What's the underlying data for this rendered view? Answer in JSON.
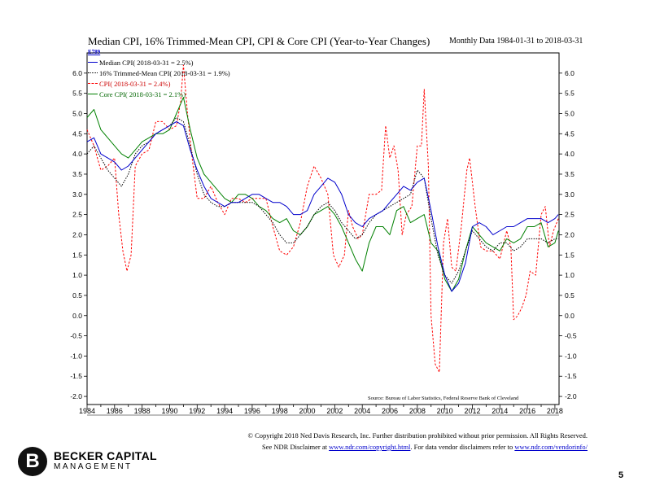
{
  "header": {
    "title": "Median CPI, 16% Trimmed-Mean CPI, CPI & Core CPI (Year-to-Year Changes)",
    "subtitle": "Monthly Data 1984-01-31 to 2018-03-31",
    "code": "E789"
  },
  "legend": [
    {
      "label": "Median CPI( 2018-03-31 = 2.5%)",
      "color": "#0000cc",
      "style": "solid"
    },
    {
      "label": "16% Trimmed-Mean CPI( 2018-03-31 = 1.9%)",
      "color": "#000000",
      "style": "dotted"
    },
    {
      "label": "CPI( 2018-03-31 = 2.4%)",
      "color": "#ff0000",
      "style": "dashed"
    },
    {
      "label": "Core CPI( 2018-03-31 = 2.1%)",
      "color": "#008000",
      "style": "solid"
    }
  ],
  "source": "Source:   Bureau of Labor Statistics, Federal Reserve Bank of Cleveland",
  "footer": {
    "line1": "© Copyright 2018 Ned Davis Research, Inc. Further distribution prohibited without prior permission. All Rights Reserved.",
    "line2_prefix": "See NDR Disclaimer at ",
    "link1": "www.ndr.com/copyright.html",
    "line2_mid": ". For data vendor disclaimers refer to ",
    "link2": "www.ndr.com/vendorinfo/"
  },
  "logo": {
    "mark": "B",
    "name": "BECKER CAPITAL",
    "sub": "MANAGEMENT"
  },
  "page_number": "5",
  "chart_data": {
    "type": "line",
    "xlim": [
      1984.0,
      2018.3
    ],
    "ylim": [
      -2.2,
      6.5
    ],
    "x_ticks": [
      "1984",
      "1986",
      "1988",
      "1990",
      "1992",
      "1994",
      "1996",
      "1998",
      "2000",
      "2002",
      "2004",
      "2006",
      "2008",
      "2010",
      "2012",
      "2014",
      "2016",
      "2018"
    ],
    "y_ticks": [
      "6.0",
      "5.5",
      "5.0",
      "4.5",
      "4.0",
      "3.5",
      "3.0",
      "2.5",
      "2.0",
      "1.5",
      "1.0",
      "0.5",
      "0.0",
      "-0.5",
      "-1.0",
      "-1.5",
      "-2.0"
    ],
    "grid": false,
    "series": [
      {
        "name": "Median CPI( 2018-03-31 = 2.5%)",
        "color": "#0000cc",
        "dash": "",
        "x": [
          1984.0,
          1984.5,
          1985.0,
          1985.5,
          1986.0,
          1986.5,
          1987.0,
          1987.5,
          1988.0,
          1988.5,
          1989.0,
          1989.5,
          1990.0,
          1990.5,
          1991.0,
          1991.5,
          1992.0,
          1992.5,
          1993.0,
          1993.5,
          1994.0,
          1994.5,
          1995.0,
          1995.5,
          1996.0,
          1996.5,
          1997.0,
          1997.5,
          1998.0,
          1998.5,
          1999.0,
          1999.5,
          2000.0,
          2000.5,
          2001.0,
          2001.5,
          2002.0,
          2002.5,
          2003.0,
          2003.5,
          2004.0,
          2004.5,
          2005.0,
          2005.5,
          2006.0,
          2006.5,
          2007.0,
          2007.5,
          2008.0,
          2008.5,
          2009.0,
          2009.5,
          2010.0,
          2010.5,
          2011.0,
          2011.5,
          2012.0,
          2012.5,
          2013.0,
          2013.5,
          2014.0,
          2014.5,
          2015.0,
          2015.5,
          2016.0,
          2016.5,
          2017.0,
          2017.5,
          2018.0,
          2018.25
        ],
        "y": [
          4.3,
          4.4,
          4.0,
          3.9,
          3.8,
          3.6,
          3.7,
          3.9,
          4.1,
          4.3,
          4.5,
          4.6,
          4.7,
          4.8,
          4.7,
          4.1,
          3.6,
          3.2,
          2.9,
          2.8,
          2.7,
          2.8,
          2.8,
          2.9,
          3.0,
          3.0,
          2.9,
          2.8,
          2.8,
          2.7,
          2.5,
          2.5,
          2.6,
          3.0,
          3.2,
          3.4,
          3.3,
          3.0,
          2.5,
          2.3,
          2.2,
          2.4,
          2.5,
          2.6,
          2.8,
          3.0,
          3.2,
          3.1,
          3.3,
          3.4,
          2.6,
          1.7,
          1.0,
          0.6,
          0.8,
          1.3,
          2.2,
          2.3,
          2.2,
          2.0,
          2.1,
          2.2,
          2.2,
          2.3,
          2.4,
          2.4,
          2.4,
          2.3,
          2.4,
          2.5
        ]
      },
      {
        "name": "16% Trimmed-Mean CPI( 2018-03-31 = 1.9%)",
        "color": "#000000",
        "dash": "1.5,1.5",
        "x": [
          1984.0,
          1984.5,
          1985.0,
          1985.5,
          1986.0,
          1986.5,
          1987.0,
          1987.5,
          1988.0,
          1988.5,
          1989.0,
          1989.5,
          1990.0,
          1990.5,
          1991.0,
          1991.5,
          1992.0,
          1992.5,
          1993.0,
          1993.5,
          1994.0,
          1994.5,
          1995.0,
          1995.5,
          1996.0,
          1996.5,
          1997.0,
          1997.5,
          1998.0,
          1998.5,
          1999.0,
          1999.5,
          2000.0,
          2000.5,
          2001.0,
          2001.5,
          2002.0,
          2002.5,
          2003.0,
          2003.5,
          2004.0,
          2004.5,
          2005.0,
          2005.5,
          2006.0,
          2006.5,
          2007.0,
          2007.5,
          2008.0,
          2008.5,
          2009.0,
          2009.5,
          2010.0,
          2010.5,
          2011.0,
          2011.5,
          2012.0,
          2012.5,
          2013.0,
          2013.5,
          2014.0,
          2014.5,
          2015.0,
          2015.5,
          2016.0,
          2016.5,
          2017.0,
          2017.5,
          2018.0,
          2018.25
        ],
        "y": [
          4.0,
          4.2,
          3.9,
          3.6,
          3.4,
          3.2,
          3.5,
          4.0,
          4.2,
          4.3,
          4.5,
          4.6,
          4.7,
          4.9,
          4.8,
          4.2,
          3.5,
          3.0,
          2.8,
          2.7,
          2.7,
          2.8,
          2.8,
          2.8,
          2.8,
          2.7,
          2.5,
          2.3,
          2.0,
          1.8,
          1.8,
          2.0,
          2.2,
          2.5,
          2.7,
          2.8,
          2.6,
          2.3,
          2.1,
          1.9,
          2.0,
          2.3,
          2.5,
          2.6,
          2.7,
          2.8,
          2.9,
          3.0,
          3.6,
          3.4,
          2.4,
          1.5,
          1.0,
          0.8,
          1.1,
          1.6,
          2.1,
          1.9,
          1.7,
          1.6,
          1.8,
          1.8,
          1.6,
          1.7,
          1.9,
          1.9,
          1.9,
          1.8,
          1.9,
          1.9
        ]
      },
      {
        "name": "CPI( 2018-03-31 = 2.4%)",
        "color": "#ff0000",
        "dash": "2.5,2",
        "x": [
          1984.0,
          1984.5,
          1985.0,
          1985.5,
          1986.0,
          1986.3,
          1986.6,
          1986.9,
          1987.2,
          1987.5,
          1988.0,
          1988.5,
          1989.0,
          1989.5,
          1990.0,
          1990.5,
          1990.8,
          1991.0,
          1991.3,
          1991.6,
          1992.0,
          1992.5,
          1993.0,
          1993.5,
          1994.0,
          1994.5,
          1995.0,
          1995.5,
          1996.0,
          1996.5,
          1997.0,
          1997.5,
          1998.0,
          1998.5,
          1999.0,
          1999.5,
          2000.0,
          2000.5,
          2001.0,
          2001.5,
          2001.9,
          2002.3,
          2002.7,
          2003.0,
          2003.3,
          2003.7,
          2004.0,
          2004.5,
          2005.0,
          2005.4,
          2005.7,
          2006.0,
          2006.3,
          2006.6,
          2006.9,
          2007.2,
          2007.6,
          2008.0,
          2008.3,
          2008.5,
          2008.8,
          2009.0,
          2009.3,
          2009.6,
          2009.9,
          2010.2,
          2010.5,
          2010.8,
          2011.2,
          2011.6,
          2011.8,
          2012.2,
          2012.6,
          2013.0,
          2013.5,
          2014.0,
          2014.5,
          2014.8,
          2015.0,
          2015.3,
          2015.6,
          2015.9,
          2016.2,
          2016.6,
          2017.0,
          2017.3,
          2017.6,
          2017.9,
          2018.25
        ],
        "y": [
          4.6,
          4.2,
          3.6,
          3.7,
          3.9,
          2.5,
          1.6,
          1.1,
          1.5,
          3.7,
          4.0,
          4.1,
          4.8,
          4.8,
          4.6,
          4.7,
          5.3,
          6.2,
          5.0,
          4.0,
          2.9,
          2.9,
          3.2,
          2.8,
          2.5,
          2.9,
          2.9,
          2.8,
          2.9,
          2.9,
          2.9,
          2.2,
          1.6,
          1.5,
          1.7,
          2.3,
          3.2,
          3.7,
          3.4,
          3.0,
          1.5,
          1.2,
          1.5,
          2.6,
          2.2,
          1.9,
          2.0,
          3.0,
          3.0,
          3.1,
          4.7,
          3.9,
          4.2,
          3.6,
          2.0,
          2.5,
          2.7,
          4.2,
          4.2,
          5.6,
          3.7,
          0.0,
          -1.2,
          -1.4,
          1.8,
          2.4,
          1.2,
          1.1,
          2.2,
          3.6,
          3.9,
          2.7,
          1.7,
          1.6,
          1.6,
          1.4,
          2.1,
          1.7,
          -0.1,
          0.0,
          0.2,
          0.5,
          1.1,
          1.0,
          2.5,
          2.7,
          1.7,
          2.1,
          2.4
        ]
      },
      {
        "name": "Core CPI( 2018-03-31 = 2.1%)",
        "color": "#008000",
        "dash": "",
        "x": [
          1984.0,
          1984.5,
          1985.0,
          1985.5,
          1986.0,
          1986.5,
          1987.0,
          1987.5,
          1988.0,
          1988.5,
          1989.0,
          1989.5,
          1990.0,
          1990.5,
          1991.0,
          1991.5,
          1992.0,
          1992.5,
          1993.0,
          1993.5,
          1994.0,
          1994.5,
          1995.0,
          1995.5,
          1996.0,
          1996.5,
          1997.0,
          1997.5,
          1998.0,
          1998.5,
          1999.0,
          1999.5,
          2000.0,
          2000.5,
          2001.0,
          2001.5,
          2002.0,
          2002.5,
          2003.0,
          2003.5,
          2004.0,
          2004.5,
          2005.0,
          2005.5,
          2006.0,
          2006.5,
          2007.0,
          2007.5,
          2008.0,
          2008.5,
          2009.0,
          2009.5,
          2010.0,
          2010.5,
          2011.0,
          2011.5,
          2012.0,
          2012.5,
          2013.0,
          2013.5,
          2014.0,
          2014.5,
          2015.0,
          2015.5,
          2016.0,
          2016.5,
          2017.0,
          2017.5,
          2018.0,
          2018.25
        ],
        "y": [
          4.9,
          5.1,
          4.6,
          4.4,
          4.2,
          4.0,
          3.9,
          4.1,
          4.3,
          4.4,
          4.5,
          4.5,
          4.6,
          5.0,
          5.4,
          4.6,
          3.9,
          3.5,
          3.3,
          3.1,
          2.9,
          2.8,
          3.0,
          3.0,
          2.9,
          2.7,
          2.6,
          2.4,
          2.3,
          2.4,
          2.1,
          2.0,
          2.2,
          2.5,
          2.6,
          2.7,
          2.5,
          2.2,
          1.8,
          1.4,
          1.1,
          1.8,
          2.2,
          2.2,
          2.0,
          2.6,
          2.7,
          2.3,
          2.4,
          2.5,
          1.8,
          1.6,
          0.9,
          0.6,
          0.9,
          1.6,
          2.2,
          2.0,
          1.8,
          1.7,
          1.6,
          1.9,
          1.8,
          1.9,
          2.2,
          2.2,
          2.3,
          1.7,
          1.8,
          2.1
        ]
      }
    ]
  }
}
